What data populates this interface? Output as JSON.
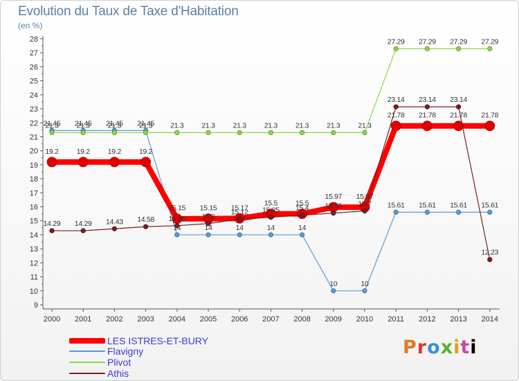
{
  "title": "Evolution du Taux de Taxe d'Habitation",
  "subtitle": "(en %)",
  "brand": "Proxiti",
  "chart_data": {
    "type": "line",
    "title": "Evolution du Taux de Taxe d'Habitation",
    "ylabel": "(en %)",
    "xlabel": "",
    "x": [
      "2000",
      "2001",
      "2002",
      "2003",
      "2004",
      "2005",
      "2006",
      "2007",
      "2008",
      "2009",
      "2010",
      "2011",
      "2012",
      "2013",
      "2014"
    ],
    "ylim": [
      9,
      28
    ],
    "yticks": [
      9,
      10,
      11,
      12,
      13,
      14,
      15,
      16,
      17,
      18,
      19,
      20,
      21,
      22,
      23,
      24,
      25,
      26,
      27,
      28
    ],
    "grid": false,
    "legend_position": "bottom-left",
    "series": [
      {
        "name": "LES ISTRES-ET-BURY",
        "color": "#ff0000",
        "values": [
          19.2,
          19.2,
          19.2,
          19.2,
          15.15,
          15.15,
          15.17,
          15.5,
          15.5,
          15.97,
          15.97,
          21.78,
          21.78,
          21.78,
          21.78
        ],
        "labels": [
          "19.2",
          "19.2",
          "19.2",
          "19.2",
          "15.15",
          "15.15",
          "15.17",
          "15.5",
          "15.5",
          "15.97",
          "15.97",
          "21.78",
          "21.78",
          "21.78",
          "21.78"
        ]
      },
      {
        "name": "Flavigny",
        "color": "#5b9bd5",
        "values": [
          21.45,
          21.45,
          21.45,
          21.45,
          14,
          14,
          14,
          14,
          14,
          10,
          10,
          15.61,
          15.61,
          15.61,
          15.61
        ],
        "labels": [
          "21.45",
          "21.45",
          "21.45",
          "21.45",
          "14",
          "14",
          "14",
          "14",
          "14",
          "10",
          "10",
          "15.61",
          "15.61",
          "15.61",
          "15.61"
        ]
      },
      {
        "name": "Plivot",
        "color": "#8cd44e",
        "values": [
          21.3,
          21.3,
          21.3,
          21.3,
          21.3,
          21.3,
          21.3,
          21.3,
          21.3,
          21.3,
          21.3,
          27.29,
          27.29,
          27.29,
          27.29
        ],
        "labels": [
          "21.3",
          "21.3",
          "21.3",
          "21.3",
          "21.3",
          "21.3",
          "21.3",
          "21.3",
          "21.3",
          "21.3",
          "21.3",
          "27.29",
          "27.29",
          "27.29",
          "27.29"
        ]
      },
      {
        "name": "Athis",
        "color": "#7a2020",
        "values": [
          14.29,
          14.29,
          14.43,
          14.58,
          14.65,
          14.8,
          15.12,
          15.25,
          15.4,
          15.55,
          15.7,
          23.14,
          23.14,
          23.14,
          12.23
        ],
        "labels": [
          "14.29",
          "14.29",
          "14.43",
          "14.58",
          "14.65",
          "14.8",
          "15.12",
          "15.25",
          "15.4",
          "15.55",
          "15.7",
          "23.14",
          "23.14",
          "23.14",
          "12.23"
        ]
      }
    ]
  }
}
